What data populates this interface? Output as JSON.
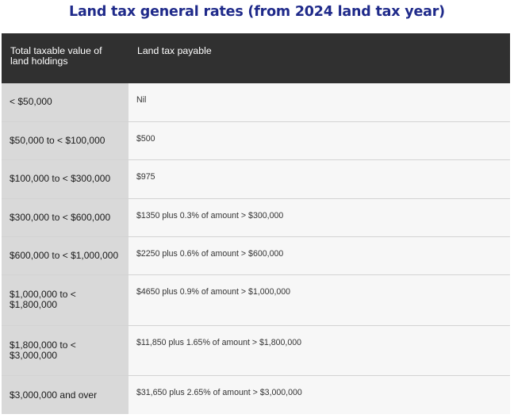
{
  "title": "Land tax general rates (from 2024 land tax year)",
  "table": {
    "headers": [
      "Total taxable value of land holdings",
      "Land tax payable"
    ],
    "rows": [
      {
        "value": "< $50,000",
        "payable": "Nil"
      },
      {
        "value": "$50,000 to < $100,000",
        "payable": "$500"
      },
      {
        "value": "$100,000 to < $300,000",
        "payable": "$975"
      },
      {
        "value": "$300,000 to < $600,000",
        "payable": "$1350 plus 0.3% of amount > $300,000"
      },
      {
        "value": "$600,000 to < $1,000,000",
        "payable": "$2250 plus 0.6% of amount > $600,000"
      },
      {
        "value": "$1,000,000 to < $1,800,000",
        "payable": "$4650 plus 0.9% of amount > $1,000,000"
      },
      {
        "value": "$1,800,000 to < $3,000,000",
        "payable": "$11,850 plus 1.65% of amount > $1,800,000"
      },
      {
        "value": "$3,000,000 and over",
        "payable": "$31,650 plus 2.65% of amount > $3,000,000"
      }
    ]
  }
}
